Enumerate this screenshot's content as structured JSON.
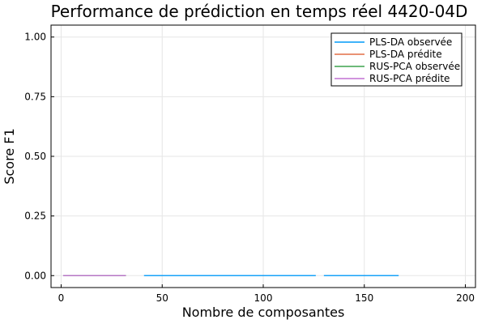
{
  "chart_data": {
    "type": "line",
    "title": "Performance de prédiction en temps réel 4420-04D",
    "xlabel": "Nombre de composantes",
    "ylabel": "Score F1",
    "xlim": [
      -5,
      205
    ],
    "ylim": [
      -0.05,
      1.05
    ],
    "xticks": [
      0,
      50,
      100,
      150,
      200
    ],
    "xtick_labels": [
      "0",
      "50",
      "100",
      "150",
      "200"
    ],
    "yticks": [
      0.0,
      0.25,
      0.5,
      0.75,
      1.0
    ],
    "ytick_labels": [
      "0.00",
      "0.25",
      "0.50",
      "0.75",
      "1.00"
    ],
    "grid": true,
    "legend_position": "top-right",
    "series": [
      {
        "name": "PLS-DA observée",
        "color": "#009af9",
        "segments": [
          [
            [
              1,
              0
            ],
            [
              32,
              0
            ]
          ],
          [
            [
              41,
              0
            ],
            [
              126,
              0
            ]
          ],
          [
            [
              130,
              0
            ],
            [
              167,
              0
            ]
          ]
        ]
      },
      {
        "name": "PLS-DA prédite",
        "color": "#e26f46",
        "segments": [
          [
            [
              1,
              0
            ],
            [
              32,
              0
            ]
          ]
        ]
      },
      {
        "name": "RUS-PCA observée",
        "color": "#3da44d",
        "segments": [
          [
            [
              1,
              0
            ],
            [
              32,
              0
            ]
          ]
        ]
      },
      {
        "name": "RUS-PCA prédite",
        "color": "#c271d2",
        "segments": [
          [
            [
              1,
              0
            ],
            [
              32,
              0
            ]
          ]
        ]
      }
    ]
  }
}
